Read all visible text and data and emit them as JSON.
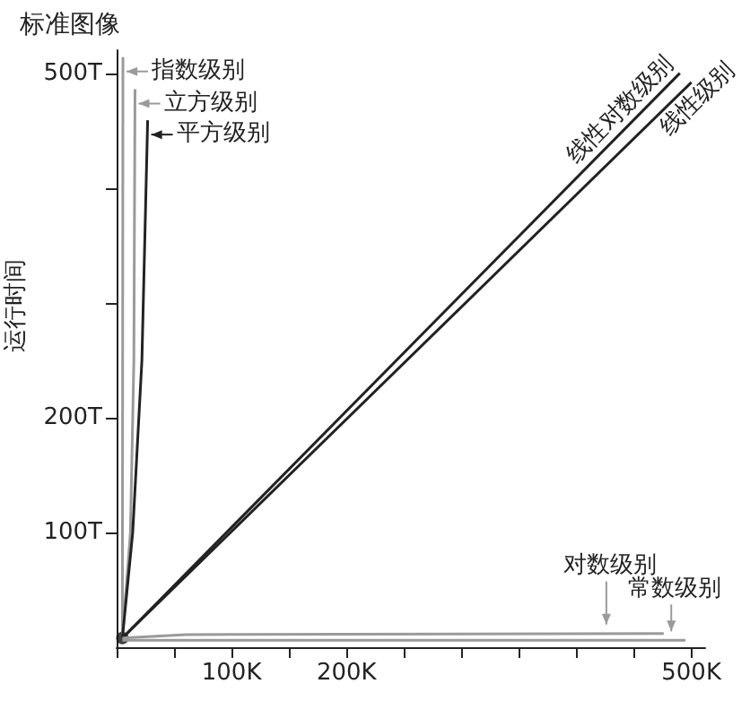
{
  "chart_data": {
    "type": "line",
    "title": "标准图像",
    "ylabel": "运行时间",
    "xlim": [
      0,
      512
    ],
    "ylim": [
      0,
      520
    ],
    "xticks": [
      {
        "value": 0,
        "label": null
      },
      {
        "value": 50,
        "label": null
      },
      {
        "value": 100,
        "label": "100K"
      },
      {
        "value": 150,
        "label": null
      },
      {
        "value": 200,
        "label": "200K"
      },
      {
        "value": 250,
        "label": null
      },
      {
        "value": 300,
        "label": null
      },
      {
        "value": 350,
        "label": null
      },
      {
        "value": 400,
        "label": null
      },
      {
        "value": 450,
        "label": null
      },
      {
        "value": 500,
        "label": "500K"
      }
    ],
    "yticks": [
      {
        "value": 100,
        "label": "100T"
      },
      {
        "value": 200,
        "label": "200T"
      },
      {
        "value": 300,
        "label": null
      },
      {
        "value": 400,
        "label": null
      },
      {
        "value": 500,
        "label": "500T"
      }
    ],
    "grid": false,
    "legend": "top",
    "marker": "none",
    "line_style": "solid",
    "series": [
      {
        "name": "指数级别",
        "color": "#9a9a9a",
        "x": [
          5,
          5.5
        ],
        "values": [
          8,
          514
        ]
      },
      {
        "name": "立方级别",
        "color": "#9a9a9a",
        "x": [
          5,
          12,
          15,
          16
        ],
        "values": [
          8,
          100,
          250,
          486
        ]
      },
      {
        "name": "平方级别",
        "color": "#222222",
        "x": [
          5,
          14,
          22,
          27
        ],
        "values": [
          8,
          100,
          250,
          459
        ]
      },
      {
        "name": "线性对数级别",
        "color": "#222222",
        "x": [
          5,
          490
        ],
        "values": [
          8,
          500
        ]
      },
      {
        "name": "线性级别",
        "color": "#222222",
        "x": [
          5,
          500
        ],
        "values": [
          8,
          492
        ]
      },
      {
        "name": "对数级别",
        "color": "#9a9a9a",
        "x": [
          5,
          60,
          476
        ],
        "values": [
          8,
          11,
          12
        ]
      },
      {
        "name": "常数级别",
        "color": "#9a9a9a",
        "x": [
          5,
          495
        ],
        "values": [
          6,
          6
        ]
      },
      {
        "type": "scatter",
        "marker": "circle",
        "color": "#111111",
        "x": [
          5
        ],
        "values": [
          8
        ]
      }
    ]
  }
}
